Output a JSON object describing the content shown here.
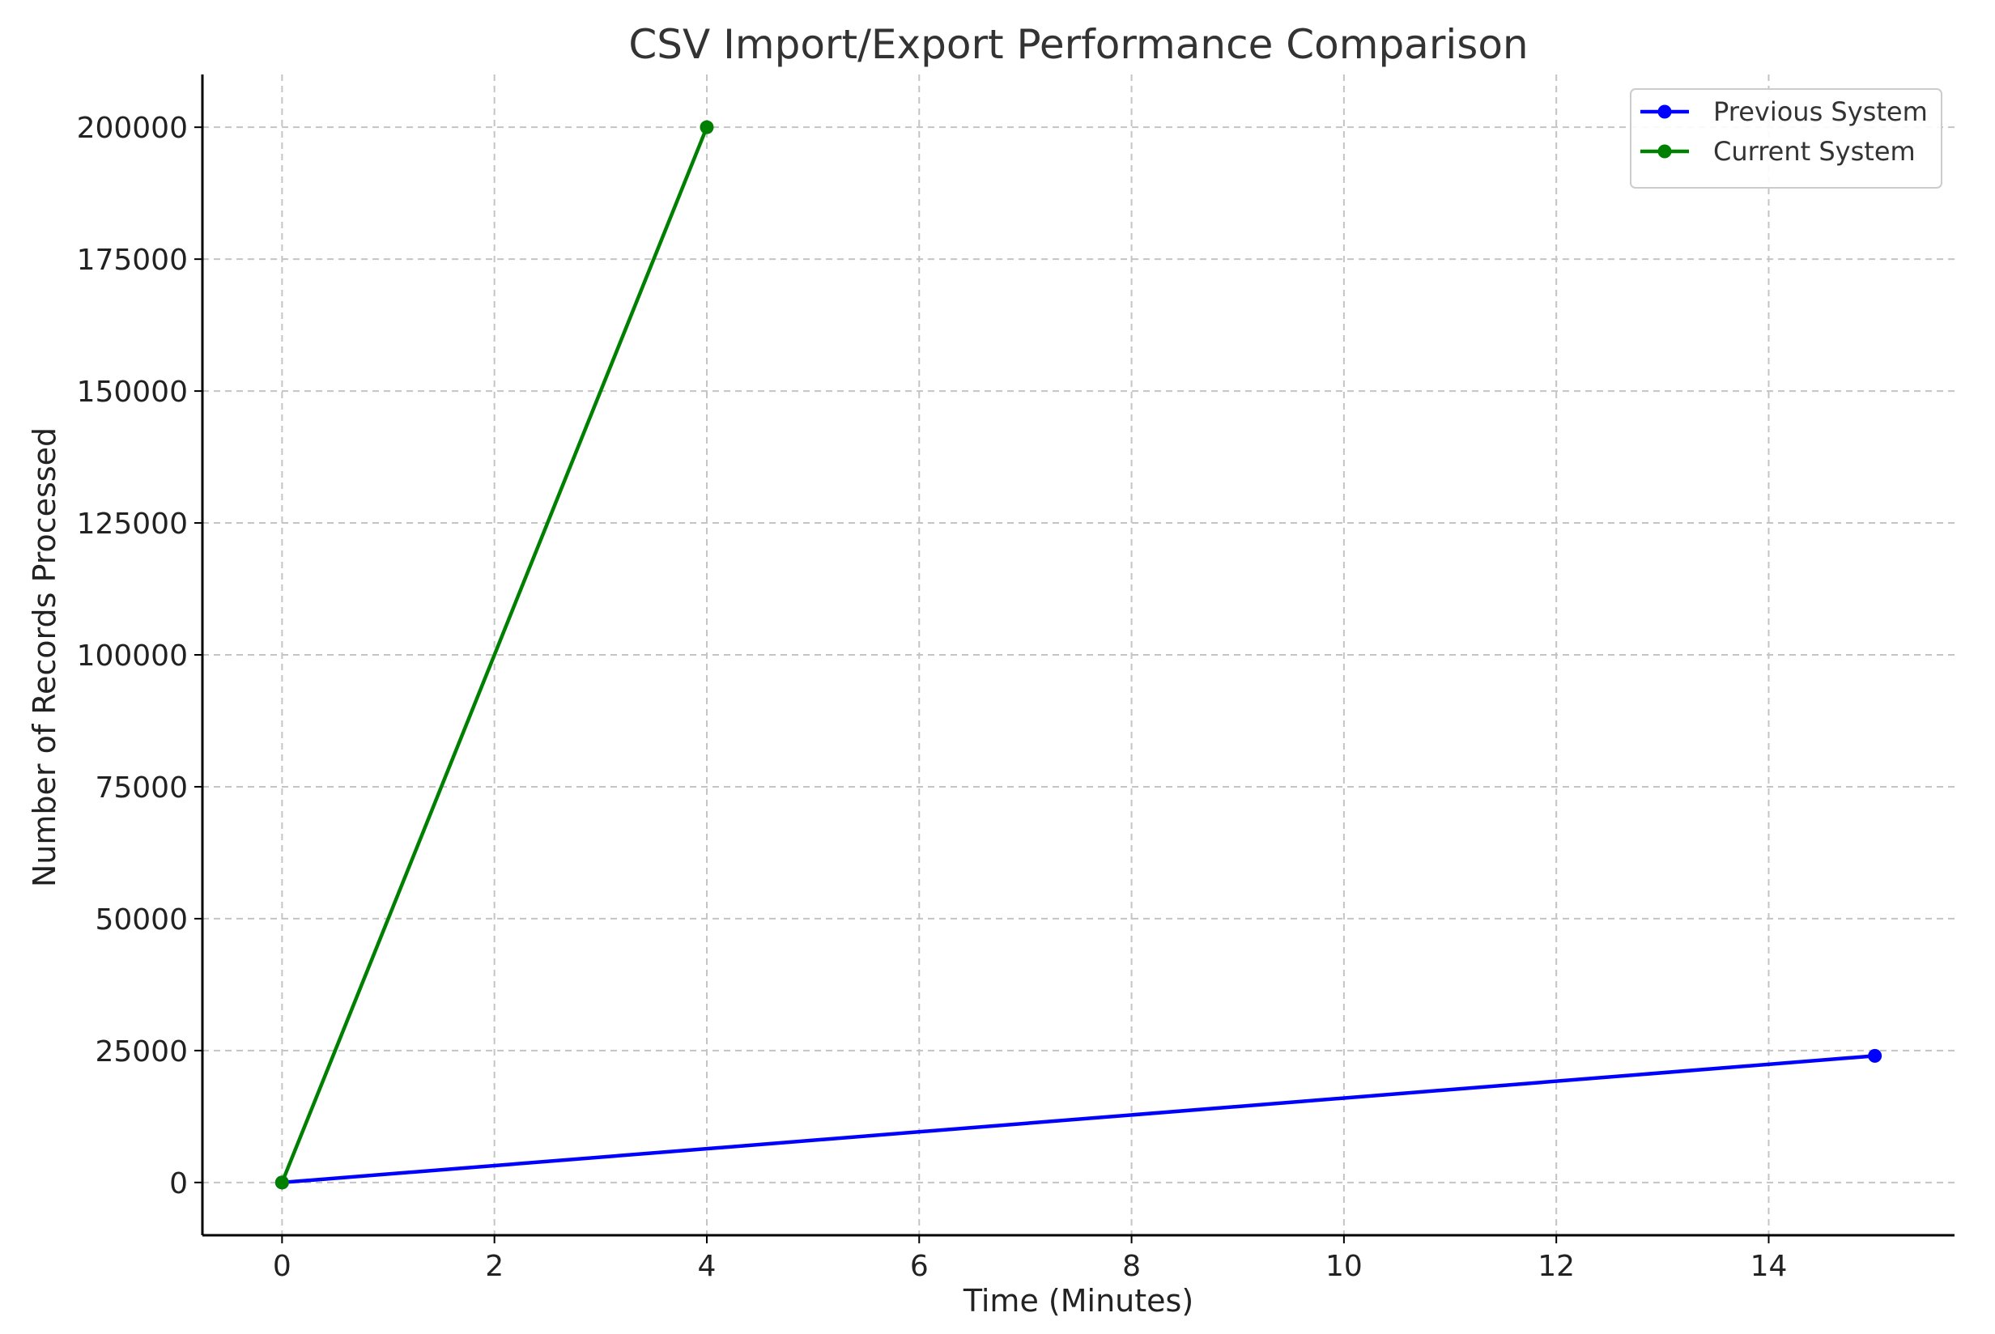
{
  "chart_data": {
    "type": "line",
    "title": "CSV Import/Export Performance Comparison",
    "xlabel": "Time (Minutes)",
    "ylabel": "Number of Records Processed",
    "xlim": [
      -0.75,
      15.75
    ],
    "ylim": [
      -10000,
      210000
    ],
    "xticks": [
      0,
      2,
      4,
      6,
      8,
      10,
      12,
      14
    ],
    "yticks": [
      0,
      25000,
      50000,
      75000,
      100000,
      125000,
      150000,
      175000,
      200000
    ],
    "grid": true,
    "legend_position": "top-right",
    "series": [
      {
        "name": "Previous System",
        "color": "#0000ff",
        "marker": "circle",
        "points": [
          [
            0,
            0
          ],
          [
            15,
            24000
          ]
        ]
      },
      {
        "name": "Current System",
        "color": "#008000",
        "marker": "circle",
        "points": [
          [
            0,
            0
          ],
          [
            4,
            200000
          ]
        ]
      }
    ]
  }
}
